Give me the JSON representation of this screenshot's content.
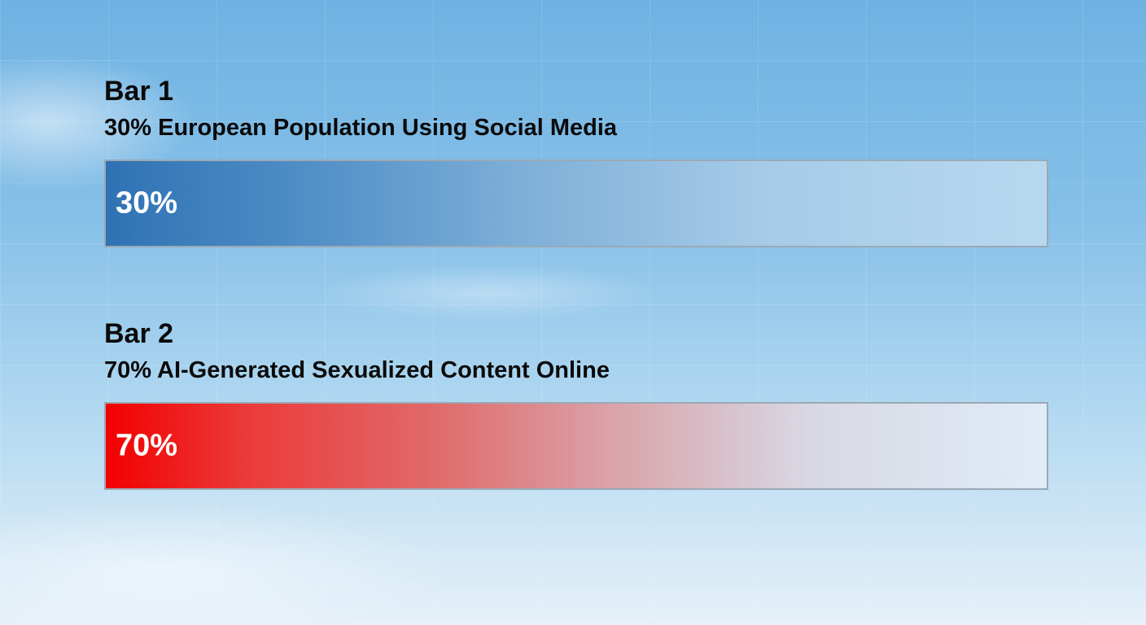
{
  "chart_data": {
    "type": "bar",
    "orientation": "horizontal",
    "xlim": [
      0,
      100
    ],
    "grid": false,
    "bars": [
      {
        "title": "Bar 1",
        "label": "30% European Population Using Social Media",
        "value": 30,
        "value_label": "30%",
        "color": "#2f72b4"
      },
      {
        "title": "Bar 2",
        "label": "70% AI-Generated Sexualized Content Online",
        "value": 70,
        "value_label": "70%",
        "color": "#f20000"
      }
    ]
  }
}
